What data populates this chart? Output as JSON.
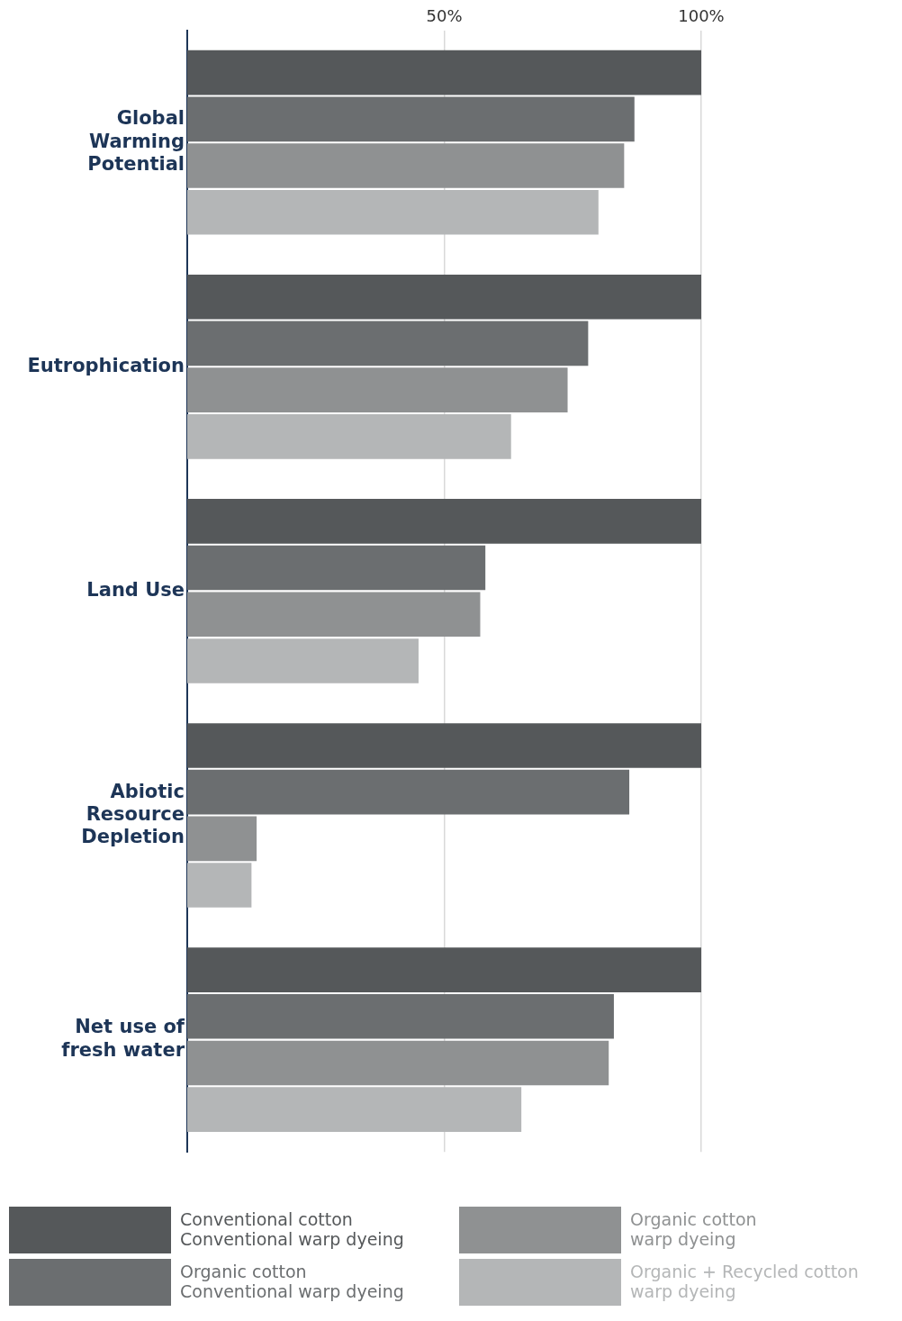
{
  "chart_data": {
    "type": "bar",
    "orientation": "horizontal",
    "categories": [
      "Global Warming Potential",
      "Eutrophication",
      "Land Use",
      "Abiotic Resource Depletion",
      "Net use of fresh water"
    ],
    "series": [
      {
        "name": "Conventional cotton Conventional warp dyeing",
        "color": "#55585a",
        "values": [
          100,
          100,
          100,
          100,
          100
        ]
      },
      {
        "name": "Organic cotton Conventional warp dyeing",
        "color": "#6b6e70",
        "values": [
          87,
          78,
          58,
          86,
          83
        ]
      },
      {
        "name": "Organic cotton warp dyeing",
        "color": "#8f9192",
        "values": [
          85,
          74,
          57,
          13.5,
          82
        ]
      },
      {
        "name": "Organic + Recycled cotton warp dyeing",
        "color": "#b4b6b7",
        "values": [
          80,
          63,
          45,
          12.5,
          65
        ]
      }
    ],
    "xlim": [
      0,
      100
    ],
    "xticks": [
      {
        "value": 50,
        "label": "50%"
      },
      {
        "value": 100,
        "label": "100%"
      }
    ],
    "grid": "x",
    "legend": "bottom"
  }
}
